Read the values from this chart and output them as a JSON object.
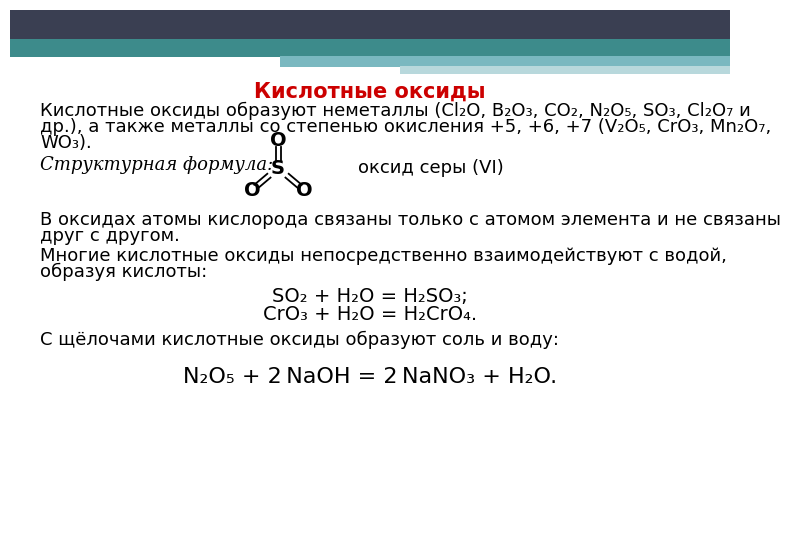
{
  "title": "Кислотные оксиды",
  "title_color": "#cc0000",
  "bg_color": "#ffffff",
  "top_bar_color": "#3a3f52",
  "teal_bar_color": "#3d8b8b",
  "teal_bar2_color": "#7ab8c0",
  "teal_bar3_color": "#b8d8dc",
  "para1_line1": "Кислотные оксиды образуют неметаллы (Cl₂O, B₂O₃, CO₂, N₂O₅, SO₃, Cl₂O₇ и",
  "para1_line2": "др.), а также металлы со степенью окисления +5, +6, +7 (V₂O₅, CrO₃, Mn₂O₇,",
  "para1_line3": "WO₃).",
  "struct_label_italic": "Структурная формула:",
  "struct_label_normal": "оксид серы (VI)",
  "para3_line1": "В оксидах атомы кислорода связаны только с атомом элемента и не связаны",
  "para3_line2": "друг с другом.",
  "para4_line1": "Многие кислотные оксиды непосредственно взаимодействуют с водой,",
  "para4_line2": "образуя кислоты:",
  "eq1": "SO₂ + H₂O = H₂SO₃;",
  "eq2": "CrO₃ + H₂O = H₂CrO₄.",
  "para5": "С щёлочами кислотные оксиды образуют соль и воду:",
  "eq3": "N₂O₅ + 2 NaOH = 2 NaNO₃ + H₂O.",
  "font_size_main": 13,
  "font_size_title": 15,
  "font_size_eq": 14
}
